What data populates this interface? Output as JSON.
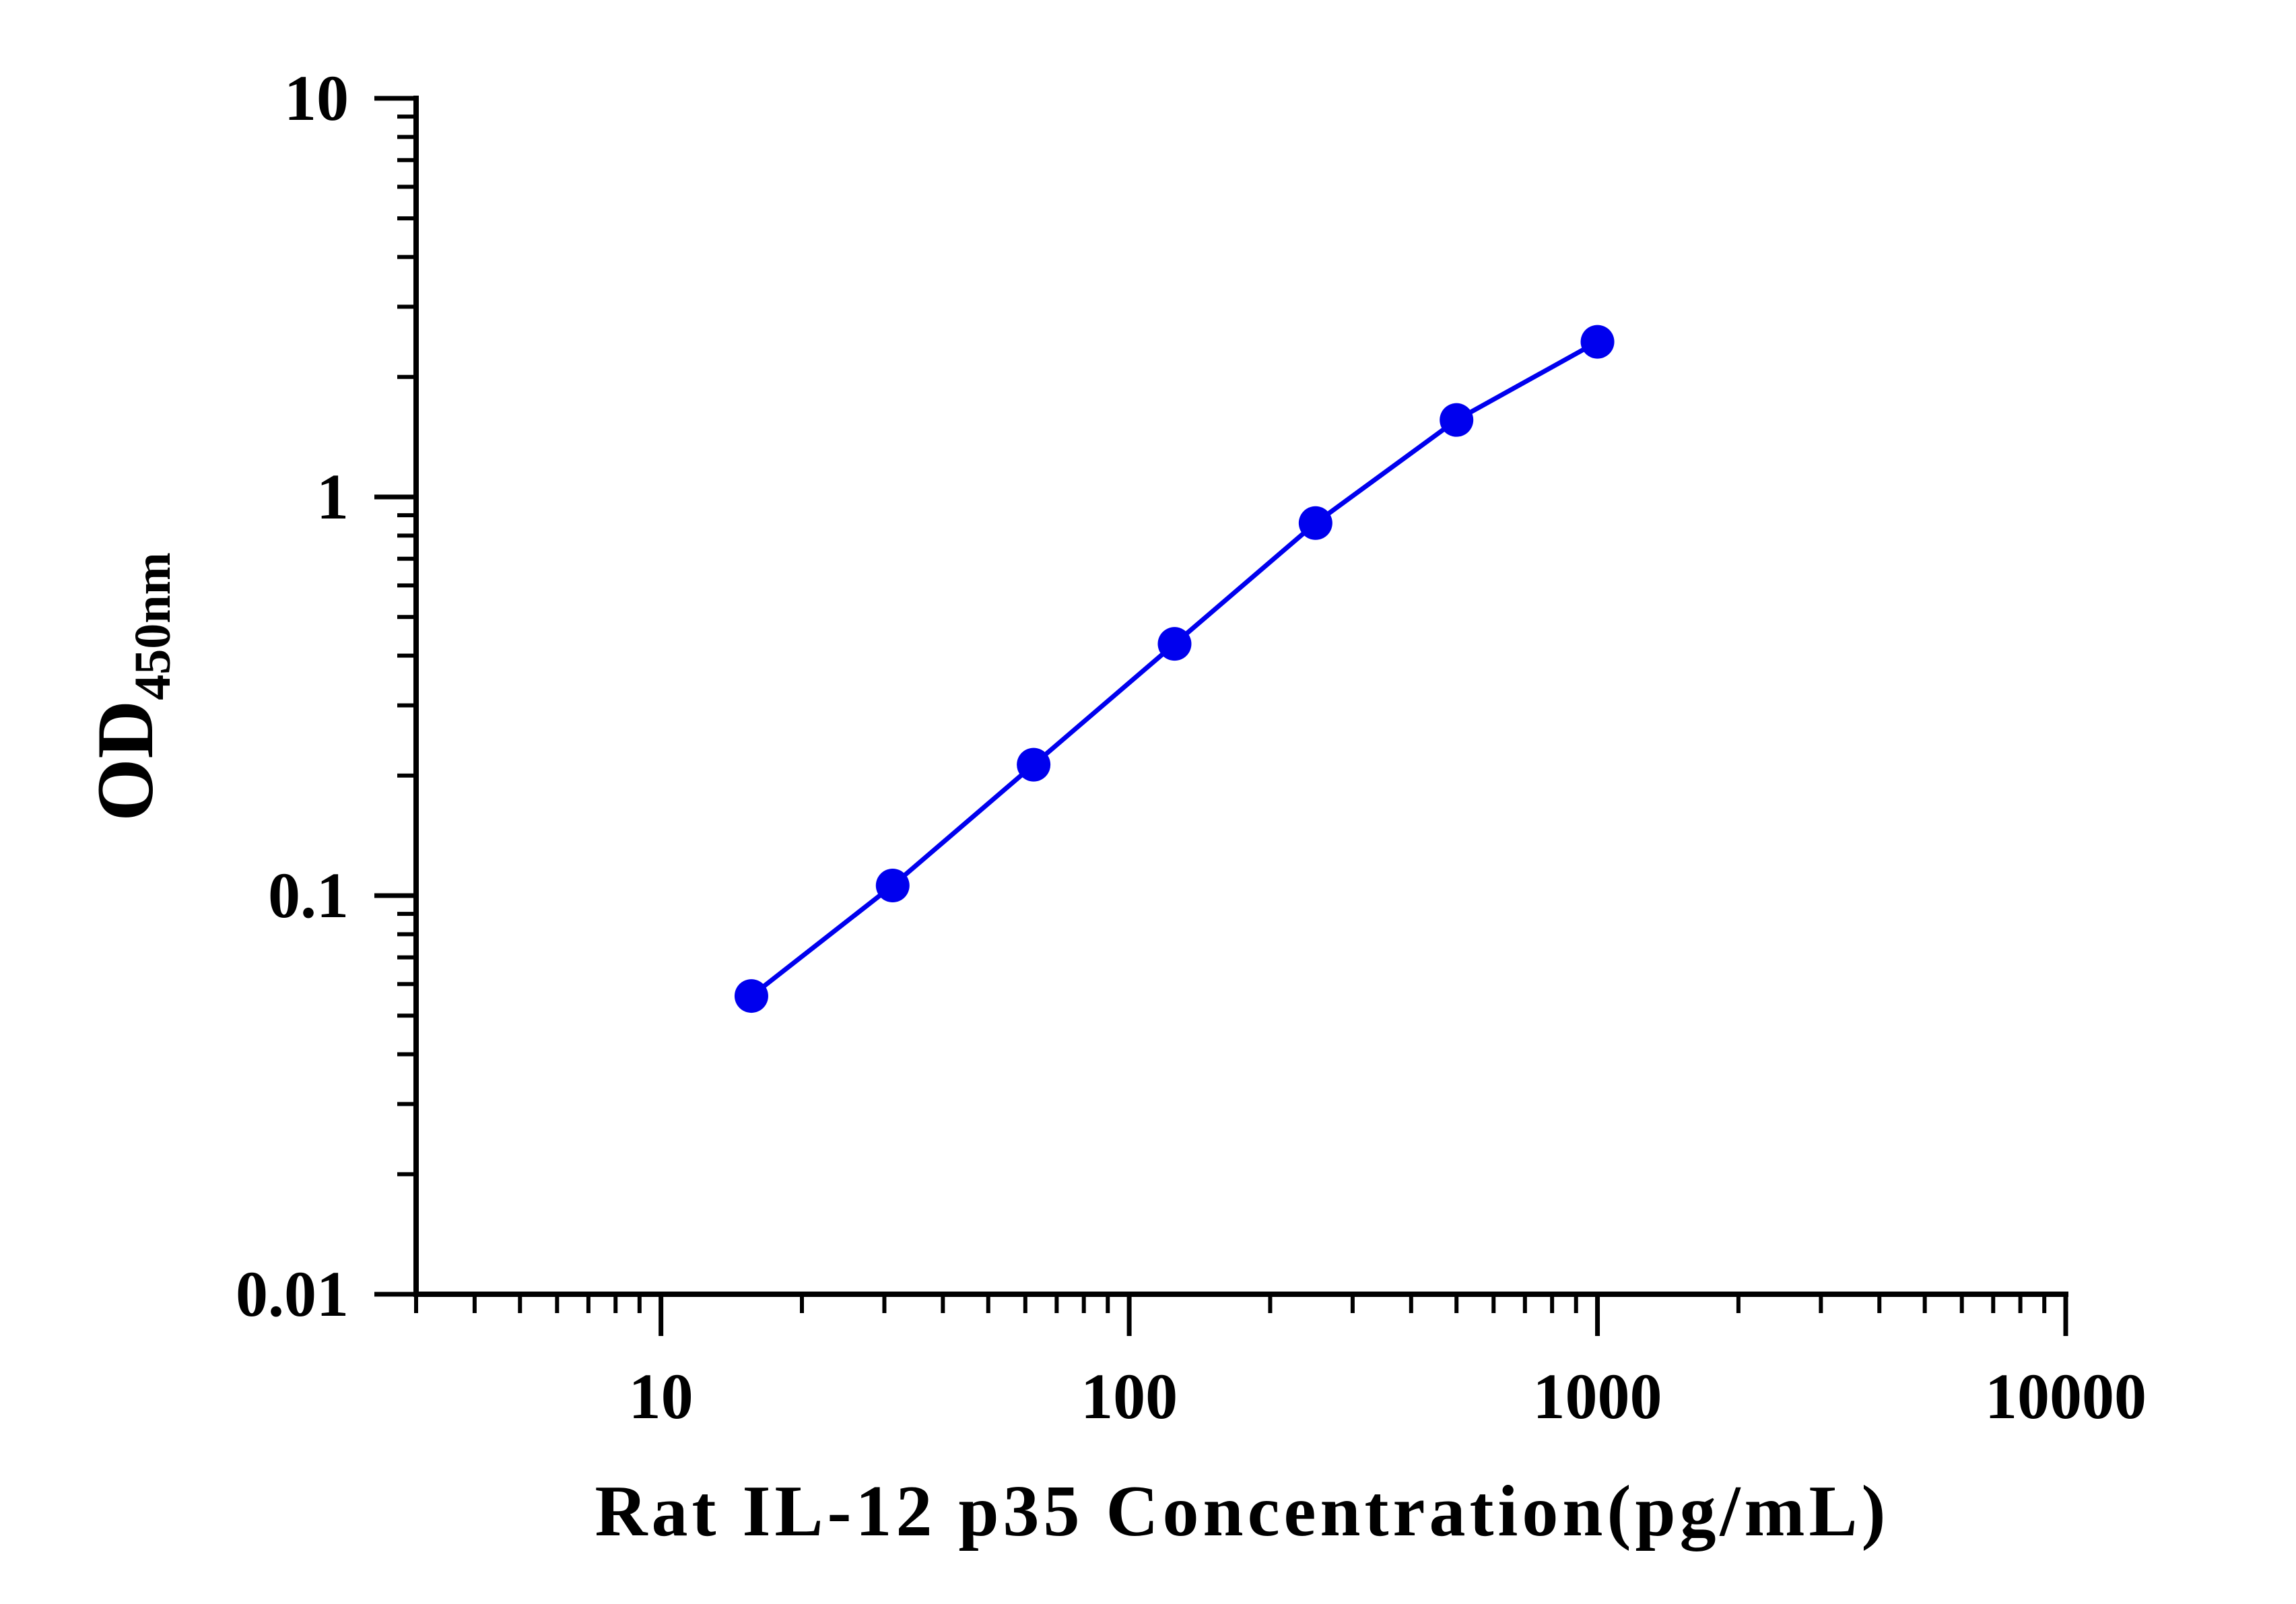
{
  "chart_data": {
    "type": "line",
    "xlabel": "Rat IL-12 p35 Concentration(pg/mL)",
    "ylabel": {
      "main": "OD",
      "subscript": "450nm"
    },
    "x_scale": "log",
    "y_scale": "log",
    "xlim": [
      3,
      10000
    ],
    "ylim": [
      0.01,
      10
    ],
    "x_ticks": [
      10,
      100,
      1000,
      10000
    ],
    "x_tick_labels": [
      "10",
      "100",
      "1000",
      "10000"
    ],
    "y_ticks": [
      0.01,
      0.1,
      1,
      10
    ],
    "y_tick_labels": [
      "0.01",
      "0.1",
      "1",
      "10"
    ],
    "grid": false,
    "legend": "none",
    "series": [
      {
        "color": "#0000ee",
        "marker": "circle",
        "x": [
          15.6,
          31.25,
          62.5,
          125,
          250,
          500,
          1000
        ],
        "y": [
          0.056,
          0.106,
          0.213,
          0.428,
          0.86,
          1.56,
          2.45
        ]
      }
    ]
  }
}
